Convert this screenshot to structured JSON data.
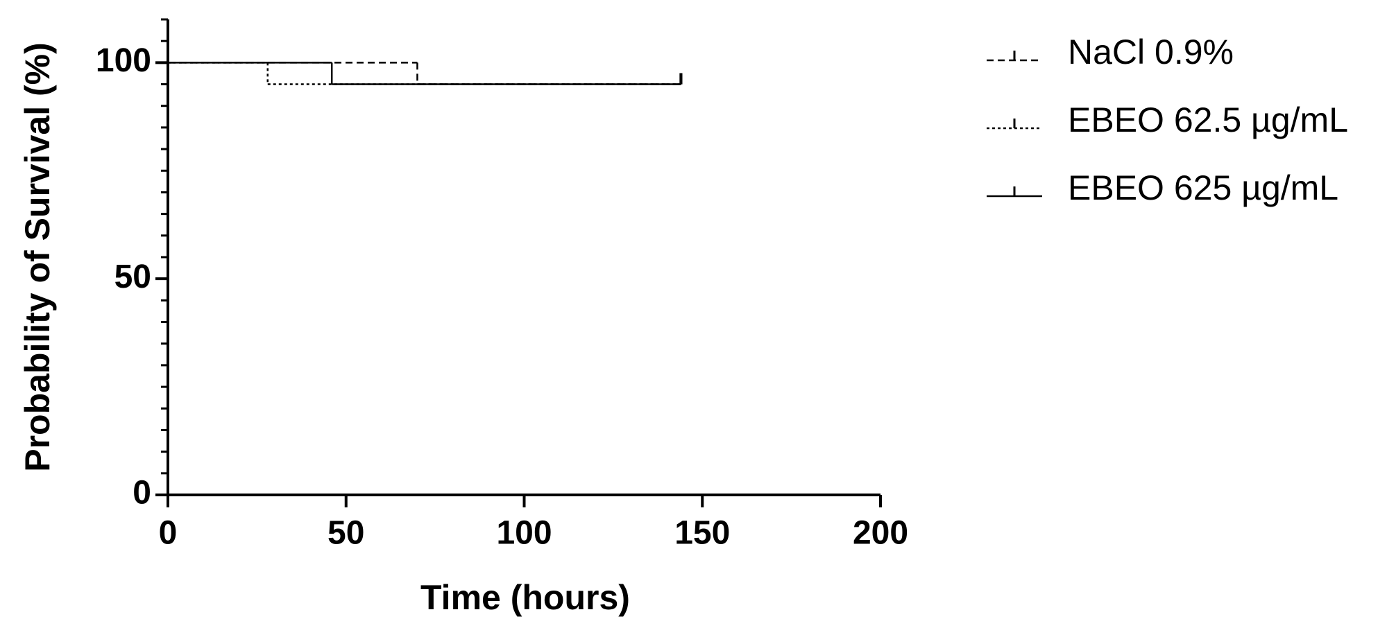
{
  "chart_data": {
    "type": "step",
    "x_label": "Time (hours)",
    "y_label": "Probability of Survival (%)",
    "xlim": [
      0,
      200
    ],
    "xticks": [
      0,
      50,
      100,
      150,
      200
    ],
    "ylim": [
      0,
      110
    ],
    "yticks": [
      0,
      50,
      100
    ],
    "y_minor_tick_step": 5,
    "censor_marks": true,
    "legend": "right",
    "series": [
      {
        "name": "NaCl 0.9%",
        "color": "#000000",
        "dash": "dashed",
        "x": [
          0,
          70,
          144
        ],
        "values": [
          100,
          95,
          95
        ]
      },
      {
        "name": "EBEO 62.5 µg/mL",
        "color": "#000000",
        "dash": "dotted",
        "x": [
          0,
          28,
          144
        ],
        "values": [
          100,
          95,
          95
        ]
      },
      {
        "name": "EBEO 625 µg/mL",
        "color": "#000000",
        "dash": "solid",
        "x": [
          0,
          46,
          144
        ],
        "values": [
          100,
          95,
          95
        ]
      }
    ]
  }
}
